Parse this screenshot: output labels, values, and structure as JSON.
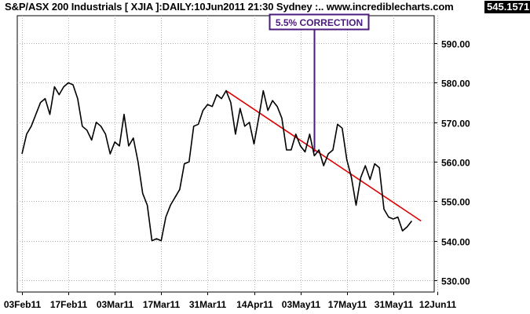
{
  "header": {
    "title": "S&P/ASX 200 Industrials [ XJIA ]:DAILY:10Jun2011 21:30 Sydney :.. www.incrediblecharts.com",
    "last_value": "545.1571"
  },
  "chart_data": {
    "type": "line",
    "ylim": [
      527,
      597
    ],
    "y_ticks": [
      530,
      540,
      550,
      560,
      570,
      580,
      590
    ],
    "y_tick_labels": [
      "530.00",
      "540.00",
      "550.00",
      "560.00",
      "570.00",
      "580.00",
      "590.00"
    ],
    "x_tick_labels": [
      "03Feb11",
      "17Feb11",
      "03Mar11",
      "17Mar11",
      "31Mar11",
      "14Apr11",
      "03May11",
      "17May11",
      "31May11",
      "12Jun11"
    ],
    "x_tick_index": [
      0,
      10,
      20,
      30,
      40,
      50,
      60,
      70,
      80,
      89.5
    ],
    "grid": true,
    "series": [
      {
        "color": "#000000",
        "values": [
          562,
          567,
          569,
          572,
          575,
          576,
          572,
          579,
          577,
          579,
          580,
          579.5,
          576,
          569,
          568,
          565.5,
          570,
          569,
          567,
          562,
          565,
          564,
          572,
          564,
          566,
          560,
          552,
          549,
          540,
          540.5,
          540,
          546,
          549,
          551,
          553,
          559.5,
          560,
          569,
          569.5,
          573,
          574.5,
          574,
          577,
          576,
          578,
          575,
          567,
          573.5,
          569,
          570,
          564.5,
          571,
          578,
          573,
          575.5,
          574,
          571,
          563,
          563,
          567,
          564,
          562.5,
          567,
          561.5,
          563,
          559,
          562,
          563,
          569.5,
          568.5,
          560.5,
          556,
          549,
          556,
          559,
          555.5,
          559.5,
          558.5,
          548,
          546,
          545.5,
          546,
          542.5,
          543.5,
          545
        ]
      }
    ],
    "trendline": {
      "color": "#dd0000",
      "from": {
        "index": 44,
        "value": 578
      },
      "to": {
        "index": 86,
        "value": 545
      }
    },
    "annotation": {
      "text": "5.5% CORRECTION",
      "index": 63,
      "value": 562.5,
      "color": "#4b1a7c"
    }
  }
}
